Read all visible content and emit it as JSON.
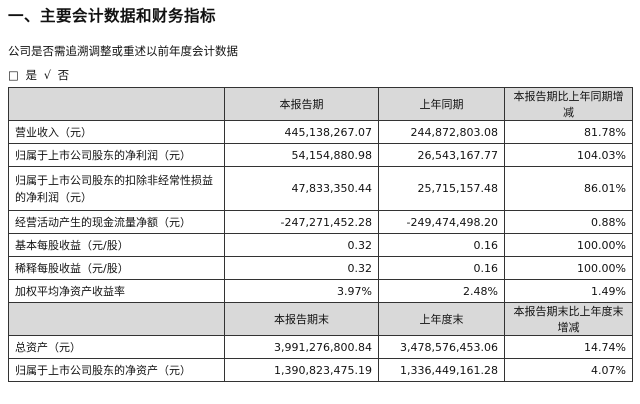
{
  "heading": "一、主要会计数据和财务指标",
  "description": "公司是否需追溯调整或重述以前年度会计数据",
  "options": {
    "box": "□",
    "yes": "是",
    "check": "√",
    "no": "否"
  },
  "table": {
    "header1": [
      "",
      "本报告期",
      "上年同期",
      "本报告期比上年同期增减"
    ],
    "rows1": [
      {
        "label": "营业收入（元）",
        "v1": "445,138,267.07",
        "v2": "244,872,803.08",
        "v3": "81.78%"
      },
      {
        "label": "归属于上市公司股东的净利润（元）",
        "v1": "54,154,880.98",
        "v2": "26,543,167.77",
        "v3": "104.03%"
      },
      {
        "label": "归属于上市公司股东的扣除非经常性损益的净利润（元）",
        "v1": "47,833,350.44",
        "v2": "25,715,157.48",
        "v3": "86.01%"
      },
      {
        "label": "经营活动产生的现金流量净额（元）",
        "v1": "-247,271,452.28",
        "v2": "-249,474,498.20",
        "v3": "0.88%"
      },
      {
        "label": "基本每股收益（元/股）",
        "v1": "0.32",
        "v2": "0.16",
        "v3": "100.00%"
      },
      {
        "label": "稀释每股收益（元/股）",
        "v1": "0.32",
        "v2": "0.16",
        "v3": "100.00%"
      },
      {
        "label": "加权平均净资产收益率",
        "v1": "3.97%",
        "v2": "2.48%",
        "v3": "1.49%"
      }
    ],
    "header2": [
      "",
      "本报告期末",
      "上年度末",
      "本报告期末比上年度末增减"
    ],
    "rows2": [
      {
        "label": "总资产（元）",
        "v1": "3,991,276,800.84",
        "v2": "3,478,576,453.06",
        "v3": "14.74%"
      },
      {
        "label": "归属于上市公司股东的净资产（元）",
        "v1": "1,390,823,475.19",
        "v2": "1,336,449,161.28",
        "v3": "4.07%"
      }
    ]
  }
}
